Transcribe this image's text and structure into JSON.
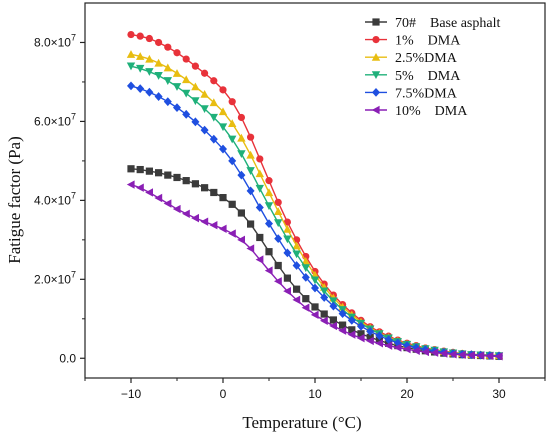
{
  "chart_data": {
    "type": "line",
    "title": "",
    "xlabel": "Temperature (°C)",
    "ylabel": "Fatigue factor (Pa)",
    "xlim": [
      -15,
      35
    ],
    "ylim": [
      -5000000,
      90000000
    ],
    "xticks": [
      -10,
      0,
      10,
      20,
      30
    ],
    "xtick_labels": [
      "−10",
      "0",
      "10",
      "20",
      "30"
    ],
    "yticks": [
      0,
      20000000,
      40000000,
      60000000,
      80000000
    ],
    "ytick_mantissa": [
      "0.0",
      "2.0",
      "4.0",
      "6.0",
      "8.0"
    ],
    "ytick_exponent": "7",
    "grid": false,
    "legend_position": "top-right",
    "x": [
      -10,
      -9,
      -8,
      -7,
      -6,
      -5,
      -4,
      -3,
      -2,
      -1,
      0,
      1,
      2,
      3,
      4,
      5,
      6,
      7,
      8,
      9,
      10,
      11,
      12,
      13,
      14,
      15,
      16,
      17,
      18,
      19,
      20,
      21,
      22,
      23,
      24,
      25,
      26,
      27,
      28,
      29,
      30
    ],
    "series": [
      {
        "name": "70# Base asphalt",
        "legend": [
          "70#",
          "Base asphalt"
        ],
        "color": "#3b3b3b",
        "marker": "square",
        "values": [
          48.0,
          47.8,
          47.4,
          47.0,
          46.4,
          45.8,
          45.0,
          44.2,
          43.2,
          42.0,
          40.7,
          39.0,
          36.8,
          34.0,
          30.6,
          27.0,
          23.5,
          20.3,
          17.5,
          15.1,
          13.0,
          11.2,
          9.7,
          8.4,
          7.2,
          6.2,
          5.3,
          4.5,
          3.8,
          3.2,
          2.7,
          2.3,
          1.9,
          1.6,
          1.3,
          1.1,
          0.9,
          0.8,
          0.7,
          0.6,
          0.5
        ]
      },
      {
        "name": "1% DMA",
        "legend": [
          "1%",
          "DMA"
        ],
        "color": "#e8323a",
        "marker": "circle",
        "values": [
          82.0,
          81.6,
          81.0,
          80.0,
          78.8,
          77.4,
          75.8,
          74.0,
          72.2,
          70.3,
          68.0,
          65.0,
          61.0,
          56.0,
          50.5,
          45.0,
          39.5,
          34.5,
          30.0,
          25.8,
          22.0,
          18.8,
          16.0,
          13.6,
          11.5,
          9.6,
          8.0,
          6.7,
          5.6,
          4.6,
          3.8,
          3.2,
          2.6,
          2.2,
          1.8,
          1.5,
          1.2,
          1.0,
          0.9,
          0.8,
          0.7
        ]
      },
      {
        "name": "2.5%DMA",
        "legend": [
          "2.5%DMA"
        ],
        "color": "#e8bd10",
        "marker": "triangle-up",
        "values": [
          77.0,
          76.5,
          75.8,
          74.8,
          73.6,
          72.2,
          70.6,
          68.8,
          66.9,
          64.8,
          62.5,
          59.5,
          55.8,
          51.5,
          46.8,
          42.0,
          37.2,
          32.7,
          28.5,
          24.6,
          21.1,
          18.0,
          15.3,
          13.0,
          11.0,
          9.2,
          7.7,
          6.4,
          5.3,
          4.4,
          3.6,
          3.0,
          2.5,
          2.1,
          1.7,
          1.4,
          1.2,
          1.0,
          0.9,
          0.8,
          0.7
        ]
      },
      {
        "name": "5% DMA",
        "legend": [
          "5%",
          "DMA"
        ],
        "color": "#1fb07a",
        "marker": "triangle-down",
        "values": [
          74.0,
          73.4,
          72.6,
          71.6,
          70.3,
          68.8,
          67.1,
          65.2,
          63.2,
          61.0,
          58.6,
          55.5,
          51.8,
          47.5,
          43.0,
          38.6,
          34.3,
          30.2,
          26.4,
          22.9,
          19.8,
          17.0,
          14.5,
          12.3,
          10.4,
          8.8,
          7.4,
          6.2,
          5.1,
          4.2,
          3.5,
          2.9,
          2.4,
          2.0,
          1.6,
          1.3,
          1.1,
          0.9,
          0.8,
          0.7,
          0.6
        ]
      },
      {
        "name": "7.5%DMA",
        "legend": [
          "7.5%DMA"
        ],
        "color": "#1f4fe0",
        "marker": "diamond",
        "values": [
          69.0,
          68.3,
          67.4,
          66.3,
          65.0,
          63.5,
          61.8,
          59.9,
          57.8,
          55.5,
          53.0,
          50.0,
          46.4,
          42.4,
          38.2,
          34.1,
          30.3,
          26.7,
          23.5,
          20.5,
          17.8,
          15.4,
          13.2,
          11.3,
          9.6,
          8.1,
          6.8,
          5.7,
          4.7,
          3.9,
          3.2,
          2.7,
          2.2,
          1.8,
          1.5,
          1.2,
          1.0,
          0.9,
          0.8,
          0.7,
          0.6
        ]
      },
      {
        "name": "10% DMA",
        "legend": [
          "10%",
          "DMA"
        ],
        "color": "#8a1fb5",
        "marker": "triangle-left",
        "values": [
          44.0,
          43.2,
          42.0,
          40.6,
          39.2,
          37.8,
          36.6,
          35.5,
          34.6,
          33.7,
          32.8,
          31.6,
          30.0,
          27.8,
          25.0,
          22.2,
          19.5,
          17.0,
          14.8,
          12.8,
          11.0,
          9.5,
          8.2,
          7.0,
          6.0,
          5.1,
          4.4,
          3.8,
          3.2,
          2.7,
          2.3,
          1.9,
          1.6,
          1.4,
          1.2,
          1.0,
          0.9,
          0.8,
          0.7,
          0.6,
          0.5
        ]
      }
    ],
    "value_scale": 1000000
  }
}
